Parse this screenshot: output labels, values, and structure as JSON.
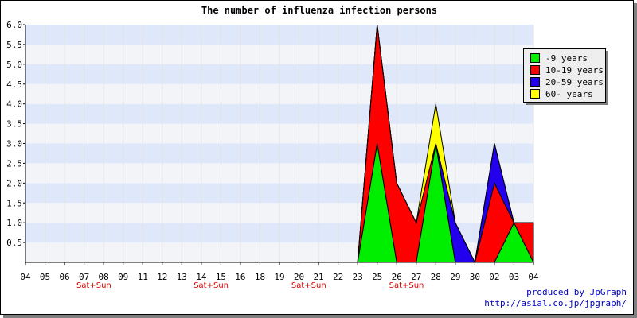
{
  "chart_data": {
    "type": "area",
    "title": "The number of influenza infection persons",
    "categories": [
      "04",
      "05",
      "06",
      "07",
      "08",
      "09",
      "11",
      "12",
      "13",
      "14",
      "15",
      "16",
      "18",
      "19",
      "20",
      "21",
      "22",
      "23",
      "25",
      "26",
      "27",
      "28",
      "29",
      "30",
      "02",
      "03",
      "04"
    ],
    "weekend_label": "Sat+Sun",
    "weekend_after": [
      "07",
      "14",
      "20",
      "26"
    ],
    "y_ticks": [
      "0.5",
      "1.0",
      "1.5",
      "2.0",
      "2.5",
      "3.0",
      "3.5",
      "4.0",
      "4.5",
      "5.0",
      "5.5",
      "6.0"
    ],
    "ylim": [
      0,
      6
    ],
    "legend_position": "top-right",
    "grid": true,
    "band_colors": [
      "#f3f4f8",
      "#dfe7fb"
    ],
    "series": [
      {
        "name": "-9 years",
        "color": "#00ee00",
        "values": [
          0,
          0,
          0,
          0,
          0,
          0,
          0,
          0,
          0,
          0,
          0,
          0,
          0,
          0,
          0,
          0,
          0,
          0,
          3,
          0,
          0,
          3,
          0,
          0,
          0,
          1,
          0
        ]
      },
      {
        "name": "10-19 years",
        "color": "#ff0000",
        "values": [
          0,
          0,
          0,
          0,
          0,
          0,
          0,
          0,
          0,
          0,
          0,
          0,
          0,
          0,
          0,
          0,
          0,
          0,
          3,
          2,
          1,
          0,
          0,
          0,
          2,
          0,
          1
        ]
      },
      {
        "name": "20-59 years",
        "color": "#2200ee",
        "values": [
          0,
          0,
          0,
          0,
          0,
          0,
          0,
          0,
          0,
          0,
          0,
          0,
          0,
          0,
          0,
          0,
          0,
          0,
          0,
          0,
          0,
          0,
          1,
          0,
          1,
          0,
          0
        ]
      },
      {
        "name": "60- years",
        "color": "#ffff00",
        "values": [
          0,
          0,
          0,
          0,
          0,
          0,
          0,
          0,
          0,
          0,
          0,
          0,
          0,
          0,
          0,
          0,
          0,
          0,
          0,
          0,
          0,
          1,
          0,
          0,
          0,
          0,
          0
        ]
      }
    ]
  },
  "credit": {
    "line1": "produced by JpGraph",
    "line2": "http://asial.co.jp/jpgraph/"
  }
}
